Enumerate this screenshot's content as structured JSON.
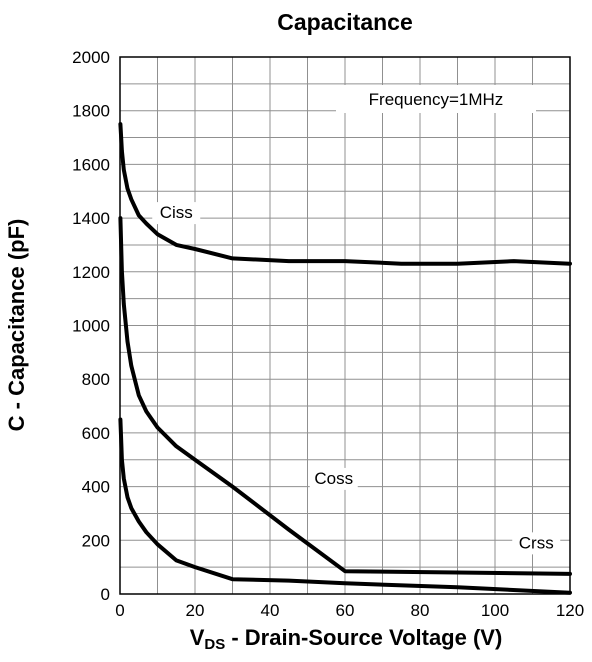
{
  "chart_data": {
    "type": "line",
    "title": "Capacitance",
    "xlabel": {
      "main": "V",
      "sub": "DS",
      "rest": " - Drain-Source Voltage (V)"
    },
    "ylabel": "C - Capacitance (pF)",
    "xlim": [
      0,
      120
    ],
    "ylim": [
      0,
      2000
    ],
    "xticks": [
      "0",
      "20",
      "40",
      "60",
      "80",
      "100",
      "120"
    ],
    "yticks": [
      "0",
      "200",
      "400",
      "600",
      "800",
      "1000",
      "1200",
      "1400",
      "1600",
      "1800",
      "2000"
    ],
    "grid": true,
    "annotation": "Frequency=1MHz",
    "series": [
      {
        "name": "Ciss",
        "x": [
          0.1,
          0.5,
          1,
          2,
          3,
          5,
          7,
          10,
          15,
          20,
          30,
          45,
          60,
          75,
          90,
          105,
          120
        ],
        "y": [
          1750,
          1650,
          1580,
          1510,
          1470,
          1410,
          1380,
          1340,
          1300,
          1285,
          1250,
          1240,
          1240,
          1230,
          1230,
          1240,
          1230
        ]
      },
      {
        "name": "Coss",
        "x": [
          0.1,
          0.5,
          1,
          2,
          3,
          5,
          7,
          10,
          15,
          20,
          30,
          45,
          60,
          90,
          120
        ],
        "y": [
          1400,
          1200,
          1080,
          940,
          850,
          740,
          680,
          620,
          550,
          500,
          400,
          240,
          85,
          80,
          75
        ]
      },
      {
        "name": "Crss",
        "x": [
          0.1,
          0.5,
          1,
          2,
          3,
          5,
          7,
          10,
          15,
          20,
          30,
          45,
          60,
          90,
          120
        ],
        "y": [
          650,
          500,
          430,
          360,
          320,
          270,
          230,
          185,
          125,
          100,
          55,
          50,
          40,
          25,
          5
        ]
      }
    ]
  }
}
